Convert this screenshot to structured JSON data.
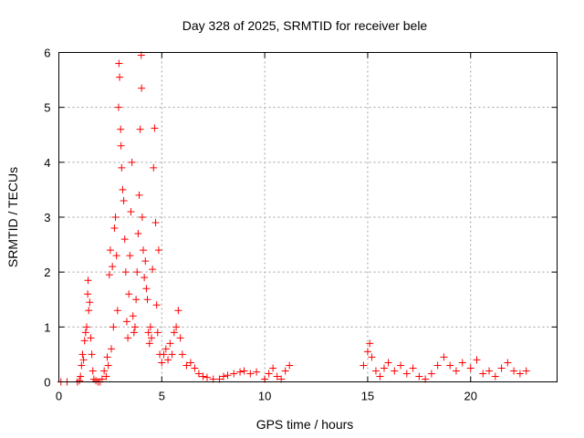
{
  "chart_data": {
    "type": "scatter",
    "title": "Day 328 of 2025, SRMTID for receiver bele",
    "xlabel": "GPS time / hours",
    "ylabel": "SRMTID / TECUs",
    "xlim": [
      0,
      24.2
    ],
    "ylim": [
      0,
      6
    ],
    "xticks": [
      0,
      5,
      10,
      15,
      20
    ],
    "xtick_labels": [
      "0",
      "5",
      "10",
      "15",
      "20"
    ],
    "yticks": [
      0,
      1,
      2,
      3,
      4,
      5,
      6
    ],
    "ytick_labels": [
      "0",
      "1",
      "2",
      "3",
      "4",
      "5",
      "6"
    ],
    "grid": true,
    "marker": "+",
    "color": "#ff0000",
    "series": [
      {
        "name": "SRMTID",
        "points": [
          [
            0.1,
            0.0
          ],
          [
            0.4,
            0.0
          ],
          [
            0.9,
            0.0
          ],
          [
            1.0,
            0.02
          ],
          [
            1.05,
            0.1
          ],
          [
            1.1,
            0.3
          ],
          [
            1.15,
            0.5
          ],
          [
            1.2,
            0.4
          ],
          [
            1.25,
            0.75
          ],
          [
            1.3,
            0.9
          ],
          [
            1.35,
            1.0
          ],
          [
            1.4,
            1.6
          ],
          [
            1.42,
            1.85
          ],
          [
            1.45,
            1.3
          ],
          [
            1.5,
            1.45
          ],
          [
            1.55,
            0.8
          ],
          [
            1.6,
            0.5
          ],
          [
            1.65,
            0.2
          ],
          [
            1.7,
            0.05
          ],
          [
            1.8,
            0.02
          ],
          [
            1.9,
            0.0
          ],
          [
            2.0,
            0.0
          ],
          [
            2.1,
            0.05
          ],
          [
            2.2,
            0.2
          ],
          [
            2.3,
            0.1
          ],
          [
            2.35,
            0.45
          ],
          [
            2.4,
            0.3
          ],
          [
            2.45,
            1.95
          ],
          [
            2.5,
            2.4
          ],
          [
            2.55,
            0.6
          ],
          [
            2.6,
            2.1
          ],
          [
            2.65,
            1.0
          ],
          [
            2.7,
            2.8
          ],
          [
            2.75,
            3.0
          ],
          [
            2.8,
            2.3
          ],
          [
            2.85,
            1.3
          ],
          [
            2.9,
            5.0
          ],
          [
            2.92,
            5.8
          ],
          [
            2.95,
            5.55
          ],
          [
            3.0,
            4.6
          ],
          [
            3.02,
            4.3
          ],
          [
            3.05,
            3.9
          ],
          [
            3.1,
            3.5
          ],
          [
            3.15,
            3.3
          ],
          [
            3.2,
            2.6
          ],
          [
            3.25,
            2.0
          ],
          [
            3.3,
            1.1
          ],
          [
            3.35,
            0.8
          ],
          [
            3.4,
            1.6
          ],
          [
            3.45,
            2.3
          ],
          [
            3.5,
            3.1
          ],
          [
            3.55,
            4.0
          ],
          [
            3.6,
            1.2
          ],
          [
            3.65,
            0.9
          ],
          [
            3.7,
            1.0
          ],
          [
            3.75,
            1.5
          ],
          [
            3.8,
            2.0
          ],
          [
            3.85,
            2.7
          ],
          [
            3.9,
            3.4
          ],
          [
            3.95,
            4.6
          ],
          [
            4.0,
            5.95
          ],
          [
            4.02,
            5.35
          ],
          [
            4.05,
            3.0
          ],
          [
            4.1,
            2.4
          ],
          [
            4.15,
            1.9
          ],
          [
            4.2,
            2.2
          ],
          [
            4.25,
            1.7
          ],
          [
            4.3,
            1.5
          ],
          [
            4.35,
            0.9
          ],
          [
            4.4,
            0.7
          ],
          [
            4.45,
            1.0
          ],
          [
            4.5,
            0.8
          ],
          [
            4.55,
            2.05
          ],
          [
            4.6,
            3.9
          ],
          [
            4.65,
            4.62
          ],
          [
            4.7,
            2.9
          ],
          [
            4.75,
            1.4
          ],
          [
            4.8,
            0.9
          ],
          [
            4.85,
            2.4
          ],
          [
            4.9,
            0.5
          ],
          [
            5.0,
            0.35
          ],
          [
            5.1,
            0.5
          ],
          [
            5.2,
            0.6
          ],
          [
            5.3,
            0.4
          ],
          [
            5.4,
            0.7
          ],
          [
            5.5,
            0.5
          ],
          [
            5.6,
            0.9
          ],
          [
            5.7,
            1.0
          ],
          [
            5.8,
            1.3
          ],
          [
            5.9,
            0.8
          ],
          [
            6.0,
            0.5
          ],
          [
            6.2,
            0.3
          ],
          [
            6.4,
            0.35
          ],
          [
            6.6,
            0.25
          ],
          [
            6.8,
            0.15
          ],
          [
            7.0,
            0.1
          ],
          [
            7.2,
            0.08
          ],
          [
            7.5,
            0.05
          ],
          [
            7.8,
            0.05
          ],
          [
            8.0,
            0.1
          ],
          [
            8.2,
            0.12
          ],
          [
            8.5,
            0.15
          ],
          [
            8.8,
            0.18
          ],
          [
            9.0,
            0.2
          ],
          [
            9.3,
            0.15
          ],
          [
            9.6,
            0.18
          ],
          [
            10.0,
            0.05
          ],
          [
            10.2,
            0.15
          ],
          [
            10.4,
            0.25
          ],
          [
            10.6,
            0.1
          ],
          [
            10.8,
            0.05
          ],
          [
            11.0,
            0.2
          ],
          [
            11.2,
            0.3
          ],
          [
            14.8,
            0.3
          ],
          [
            15.0,
            0.55
          ],
          [
            15.1,
            0.7
          ],
          [
            15.2,
            0.45
          ],
          [
            15.4,
            0.2
          ],
          [
            15.6,
            0.1
          ],
          [
            15.8,
            0.25
          ],
          [
            16.0,
            0.35
          ],
          [
            16.3,
            0.2
          ],
          [
            16.6,
            0.3
          ],
          [
            16.9,
            0.15
          ],
          [
            17.2,
            0.25
          ],
          [
            17.5,
            0.1
          ],
          [
            17.8,
            0.05
          ],
          [
            18.1,
            0.15
          ],
          [
            18.4,
            0.3
          ],
          [
            18.7,
            0.45
          ],
          [
            19.0,
            0.3
          ],
          [
            19.3,
            0.2
          ],
          [
            19.6,
            0.35
          ],
          [
            20.0,
            0.25
          ],
          [
            20.3,
            0.4
          ],
          [
            20.6,
            0.15
          ],
          [
            20.9,
            0.2
          ],
          [
            21.2,
            0.1
          ],
          [
            21.5,
            0.25
          ],
          [
            21.8,
            0.35
          ],
          [
            22.1,
            0.2
          ],
          [
            22.4,
            0.15
          ],
          [
            22.7,
            0.2
          ]
        ]
      }
    ]
  }
}
